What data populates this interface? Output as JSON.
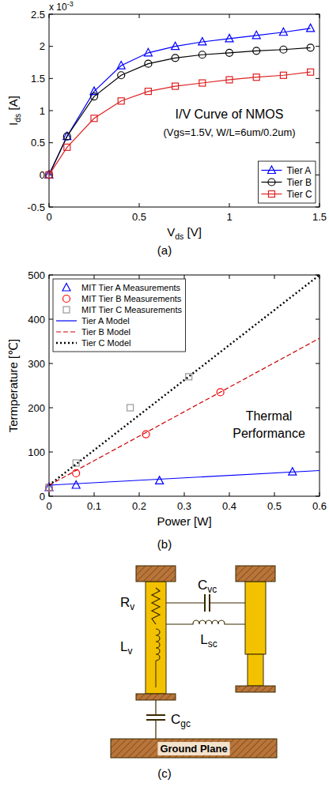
{
  "chart_data": [
    {
      "type": "line",
      "xlabel": "Vds [V]",
      "ylabel": "Ids [A]",
      "y_multiplier": {
        "base": "x 10",
        "exponent": "-3"
      },
      "annotations": [
        "I/V Curve of NMOS",
        "(Vgs=1.5V, W/L=6um/0.2um)"
      ],
      "caption": "(a)",
      "xlim": [
        0,
        1.5
      ],
      "xticks": [
        0,
        0.5,
        1,
        1.5
      ],
      "ylim": [
        -0.5,
        2.5
      ],
      "yticks": [
        -0.5,
        0,
        0.5,
        1,
        1.5,
        2,
        2.5
      ],
      "legend": "lower right",
      "x": [
        0,
        0.1,
        0.25,
        0.4,
        0.55,
        0.7,
        0.85,
        1.0,
        1.15,
        1.3,
        1.45
      ],
      "series": [
        {
          "name": "Tier A",
          "color": "#0000ff",
          "marker": "triangle",
          "values": [
            0,
            0.6,
            1.3,
            1.7,
            1.9,
            2.0,
            2.07,
            2.12,
            2.17,
            2.22,
            2.28
          ]
        },
        {
          "name": "Tier B",
          "color": "#000000",
          "marker": "circle",
          "values": [
            0,
            0.6,
            1.22,
            1.55,
            1.73,
            1.82,
            1.87,
            1.9,
            1.93,
            1.95,
            1.98
          ]
        },
        {
          "name": "Tier C",
          "color": "#dd2222",
          "marker": "square",
          "values": [
            0,
            0.43,
            0.88,
            1.15,
            1.3,
            1.38,
            1.43,
            1.48,
            1.52,
            1.55,
            1.6
          ]
        }
      ]
    },
    {
      "type": "scatter",
      "xlabel": "Power [W]",
      "ylabel": "Termperature [℃]",
      "annotations": [
        "Thermal Performance"
      ],
      "caption": "(b)",
      "xlim": [
        0,
        0.6
      ],
      "xticks": [
        0,
        0.1,
        0.2,
        0.3,
        0.4,
        0.5,
        0.6
      ],
      "ylim": [
        0,
        500
      ],
      "yticks": [
        0,
        100,
        200,
        300,
        400,
        500
      ],
      "legend": "upper left",
      "series": [
        {
          "name": "MIT Tier A Measurements",
          "type": "scatter",
          "color": "#0000ff",
          "marker": "triangle",
          "x": [
            0,
            0.06,
            0.245,
            0.54
          ],
          "values": [
            20,
            25,
            35,
            55
          ]
        },
        {
          "name": "MIT Tier B Measurements",
          "type": "scatter",
          "color": "#ff0000",
          "marker": "circle",
          "x": [
            0,
            0.06,
            0.215,
            0.38
          ],
          "values": [
            20,
            52,
            140,
            235
          ]
        },
        {
          "name": "MIT Tier C Measurements",
          "type": "scatter",
          "color": "#999999",
          "marker": "square",
          "x": [
            0,
            0.06,
            0.18,
            0.31
          ],
          "values": [
            20,
            75,
            200,
            270
          ]
        },
        {
          "name": "Tier A Model",
          "type": "line",
          "color": "#0000ff",
          "line_style": "solid",
          "x": [
            0,
            0.6
          ],
          "values": [
            25,
            58
          ]
        },
        {
          "name": "Tier B Model",
          "type": "line",
          "color": "#cc0000",
          "line_style": "dashed",
          "x": [
            0,
            0.6
          ],
          "values": [
            25,
            357
          ]
        },
        {
          "name": "Tier C Model",
          "type": "line",
          "color": "#000000",
          "line_style": "dotted",
          "x": [
            0,
            0.6
          ],
          "values": [
            25,
            500
          ]
        }
      ]
    }
  ],
  "diagram": {
    "caption": "(c)",
    "labels": {
      "resistance": "Rv",
      "inductance": "Lv",
      "via_capacitance": "Cvc",
      "self_inductance": "Lsc",
      "ground_capacitance": "Cgc"
    },
    "ground_plane": "Ground Plane"
  }
}
